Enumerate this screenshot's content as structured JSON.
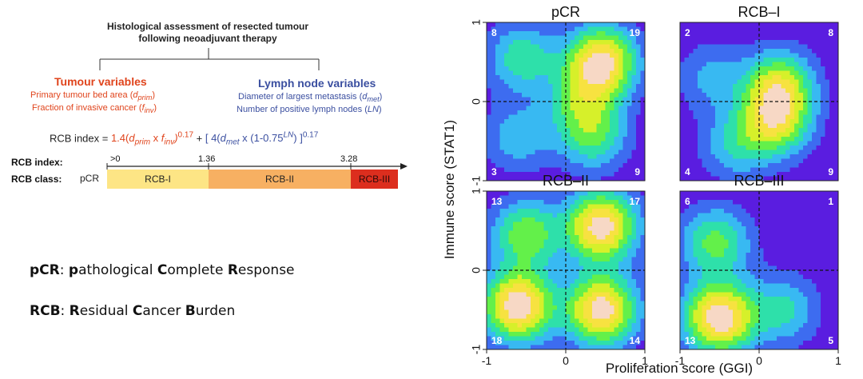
{
  "schema": {
    "title_line1": "Histological assessment of resected tumour",
    "title_line2": "following neoadjuvant therapy",
    "tumour": {
      "title": "Tumour variables",
      "line1_pre": "Primary tumour bed area (",
      "line1_var": "d",
      "line1_sub": "prim",
      "line1_post": ")",
      "line2_pre": "Fraction of invasive cancer (",
      "line2_var": "f",
      "line2_sub": "inv",
      "line2_post": ")"
    },
    "lymph": {
      "title": "Lymph node variables",
      "line1_pre": "Diameter of largest metastasis (",
      "line1_var": "d",
      "line1_sub": "met",
      "line1_post": ")",
      "line2_pre": "Number of positive lymph nodes (",
      "line2_var": "LN",
      "line2_post": ")"
    },
    "formula": {
      "lhs": "RCB index = ",
      "t1": "1.4(",
      "t1_d": "d",
      "t1_dsub": "prim",
      "t1_x": " x ",
      "t1_f": "f",
      "t1_fsub": "inv",
      "t1_close": ")",
      "t1_exp": "0.17",
      "plus": " + ",
      "t2": "[ 4(",
      "t2_d": "d",
      "t2_dsub": "met",
      "t2_x": " x (1-0.75",
      "t2_ln": "LN",
      "t2_close": ") ]",
      "t2_exp": "0.17"
    },
    "scale": {
      "index_label": "RCB index:",
      "class_label": "RCB class:",
      "ticks": [
        ">0",
        "1.36",
        "3.28"
      ],
      "pcr": "pCR",
      "classes": [
        {
          "name": "RCB-I",
          "color": "#fde585"
        },
        {
          "name": "RCB-II",
          "color": "#f7b062"
        },
        {
          "name": "RCB-III",
          "color": "#dc2e1e"
        }
      ]
    }
  },
  "definitions": {
    "pcr": {
      "abbr": "pCR",
      "colon": ": ",
      "p1b": "p",
      "p1": "athological ",
      "p2b": "C",
      "p2": "omplete ",
      "p3b": "R",
      "p3": "esponse"
    },
    "rcb": {
      "abbr": "RCB",
      "colon": ": ",
      "p1b": "R",
      "p1": "esidual ",
      "p2b": "C",
      "p2": "ancer ",
      "p3b": "B",
      "p3": "urden"
    }
  },
  "chart_data": {
    "type": "heatmap",
    "xlabel": "Proliferation score (GGI)",
    "ylabel": "Immune score (STAT1)",
    "xlim": [
      -1,
      1
    ],
    "ylim": [
      -1,
      1
    ],
    "x_ticks": [
      "-1",
      "0",
      "1"
    ],
    "y_ticks": [
      "-1",
      "0",
      "1"
    ],
    "colors": {
      "low": "#5a1de0",
      "ramp": [
        "#5a1de0",
        "#3d6cf0",
        "#38b9f2",
        "#2ee0aa",
        "#63f04a",
        "#d6f02a",
        "#f7e240",
        "#f7d8c5"
      ]
    },
    "panels": [
      {
        "title": "pCR",
        "counts": {
          "top_left": "8",
          "top_right": "19",
          "bottom_left": "3",
          "bottom_right": "9"
        },
        "density_peaks": [
          {
            "x": 0.45,
            "y": 0.5,
            "w": 1.0
          },
          {
            "x": 0.2,
            "y": 0.0,
            "w": 0.45
          },
          {
            "x": 0.35,
            "y": -0.45,
            "w": 0.45
          },
          {
            "x": -0.55,
            "y": 0.55,
            "w": 0.45
          },
          {
            "x": -0.6,
            "y": -0.45,
            "w": 0.3
          }
        ]
      },
      {
        "title": "RCB–I",
        "counts": {
          "top_left": "2",
          "top_right": "8",
          "bottom_left": "4",
          "bottom_right": "9"
        },
        "density_peaks": [
          {
            "x": 0.25,
            "y": 0.2,
            "w": 0.95
          },
          {
            "x": 0.2,
            "y": -0.25,
            "w": 1.0
          },
          {
            "x": -0.3,
            "y": -0.55,
            "w": 0.45
          },
          {
            "x": -0.6,
            "y": 0.3,
            "w": 0.35
          }
        ]
      },
      {
        "title": "RCB–II",
        "counts": {
          "top_left": "13",
          "top_right": "17",
          "bottom_left": "18",
          "bottom_right": "14"
        },
        "density_peaks": [
          {
            "x": 0.45,
            "y": 0.55,
            "w": 0.95
          },
          {
            "x": 0.45,
            "y": -0.5,
            "w": 0.95
          },
          {
            "x": -0.6,
            "y": -0.45,
            "w": 1.0
          },
          {
            "x": -0.5,
            "y": 0.45,
            "w": 0.55
          }
        ]
      },
      {
        "title": "RCB–III",
        "counts": {
          "top_left": "6",
          "top_right": "1",
          "bottom_left": "13",
          "bottom_right": "5"
        },
        "density_peaks": [
          {
            "x": -0.5,
            "y": -0.6,
            "w": 1.0
          },
          {
            "x": -0.55,
            "y": 0.35,
            "w": 0.5
          },
          {
            "x": 0.3,
            "y": -0.5,
            "w": 0.35
          }
        ]
      }
    ]
  }
}
